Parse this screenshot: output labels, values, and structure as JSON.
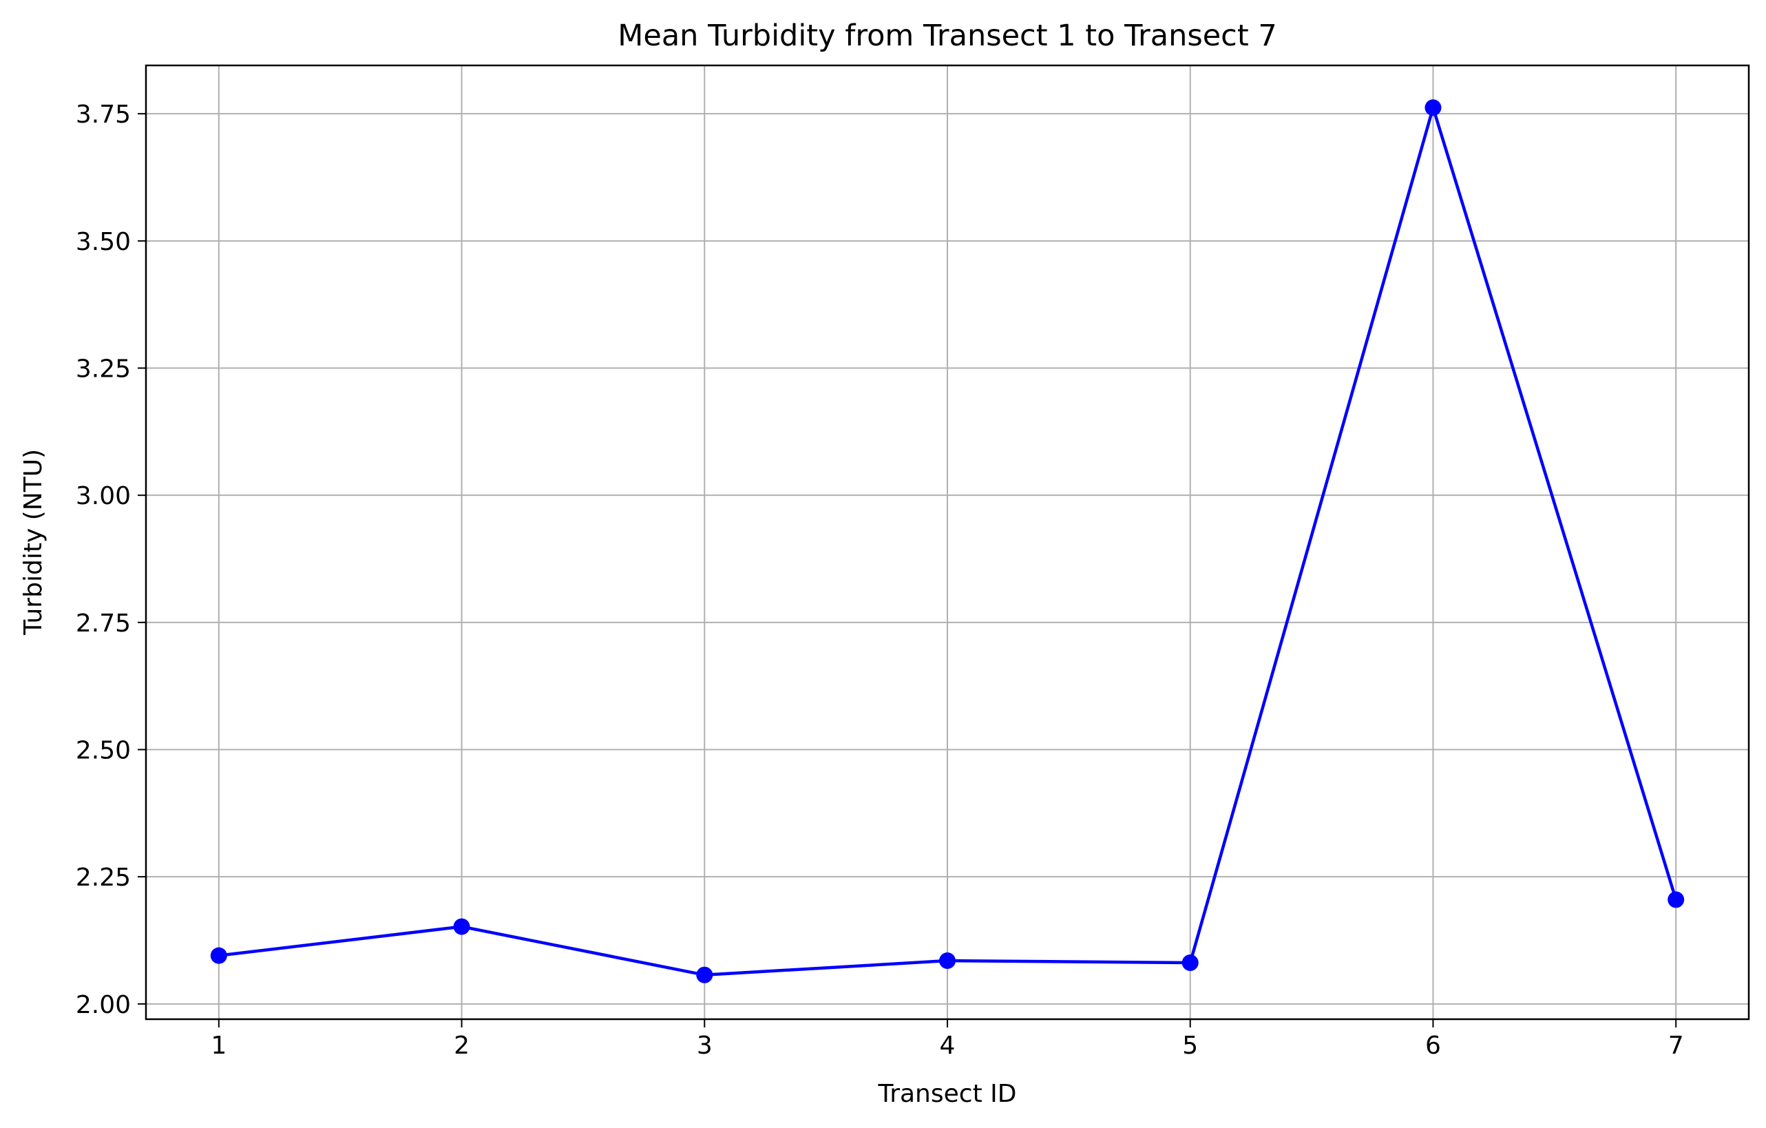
{
  "chart_data": {
    "type": "line",
    "title": "Mean Turbidity from Transect 1 to Transect 7",
    "xlabel": "Transect ID",
    "ylabel": "Turbidity (NTU)",
    "x": [
      1,
      2,
      3,
      4,
      5,
      6,
      7
    ],
    "x_ticks": [
      "1",
      "2",
      "3",
      "4",
      "5",
      "6",
      "7"
    ],
    "xlim": [
      0.7,
      7.3
    ],
    "ylim": [
      1.97,
      3.845
    ],
    "y_ticks": [
      "2.00",
      "2.25",
      "2.50",
      "2.75",
      "3.00",
      "3.25",
      "3.50",
      "3.75"
    ],
    "grid": true,
    "series": [
      {
        "values": [
          2.095,
          2.152,
          2.057,
          2.085,
          2.081,
          3.762,
          2.205
        ],
        "color": "#0000ff",
        "marker": "circle"
      }
    ]
  }
}
